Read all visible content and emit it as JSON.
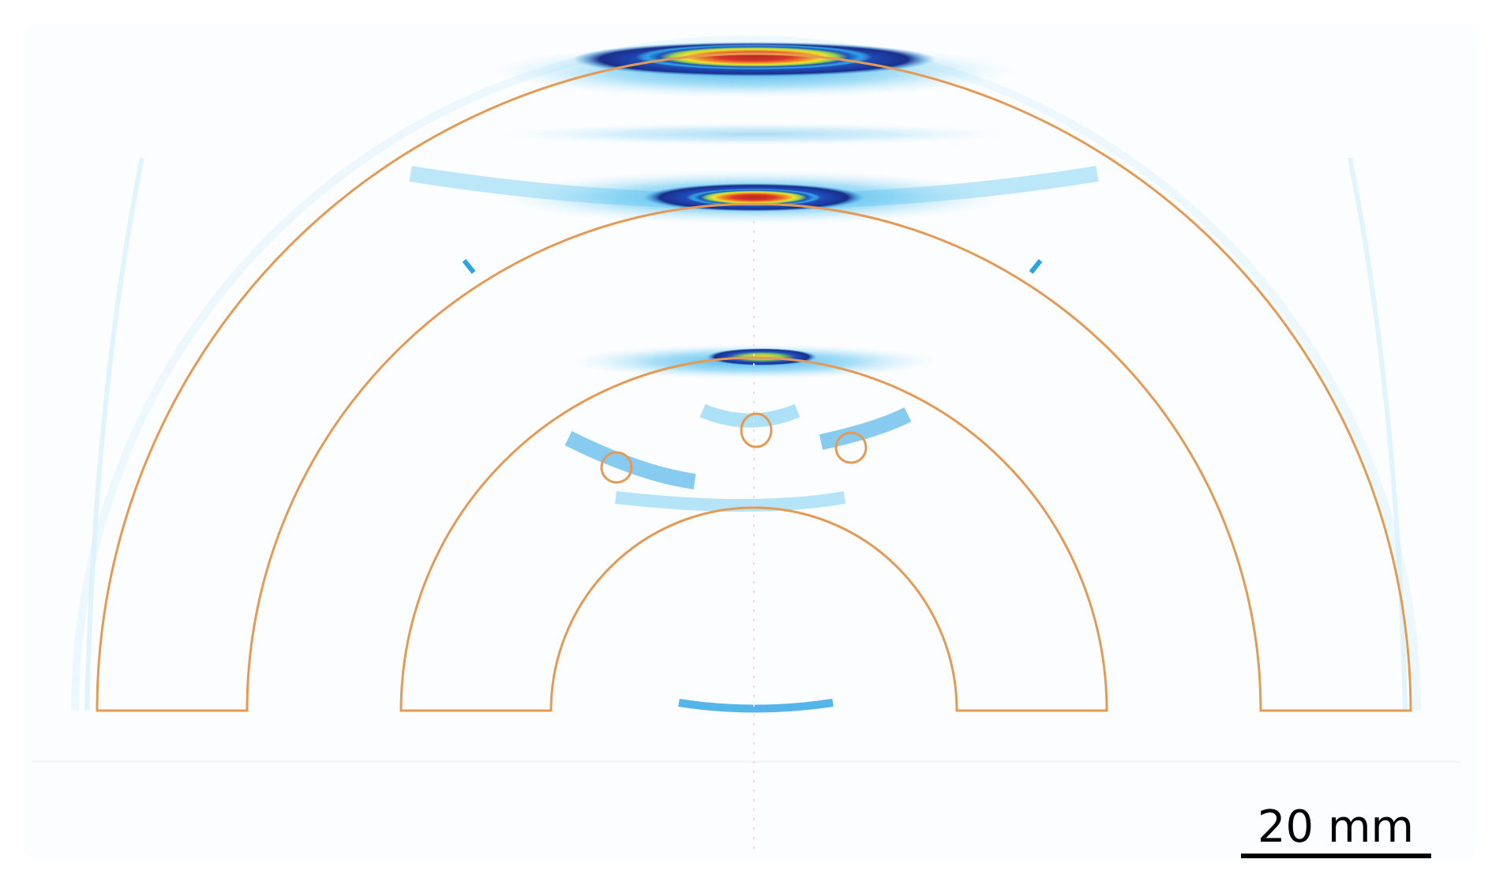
{
  "figure": {
    "scale_bar": {
      "label": "20 mm",
      "length_mm": 20
    }
  },
  "colors": {
    "outline": "#e39a55",
    "background": "#ffffff",
    "scale_bar": "#000000",
    "colormap": [
      "#5fc5f0",
      "#29a3e5",
      "#1f4fbf",
      "#1a2e8a",
      "#8fd14f",
      "#f1e12d",
      "#f08a2a",
      "#d9352a",
      "#b8281f"
    ]
  }
}
